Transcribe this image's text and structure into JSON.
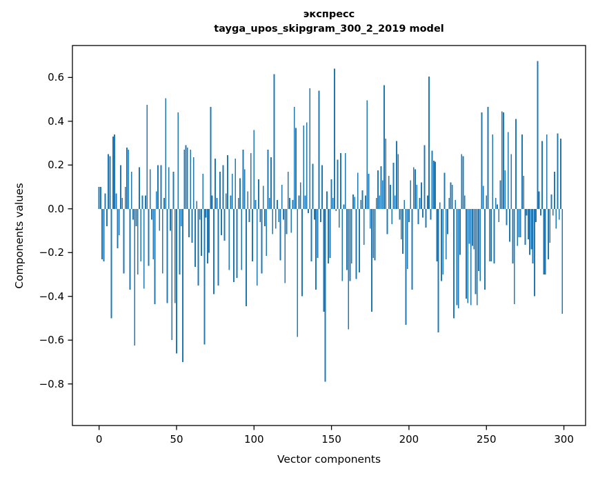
{
  "figure": {
    "title_line1": "экспресс",
    "title_line2": "tayga_upos_skipgram_300_2_2019 model",
    "xlabel": "Vector components",
    "ylabel": "Components values"
  },
  "chart_data": {
    "type": "bar",
    "title": "экспресс",
    "subtitle": "tayga_upos_skipgram_300_2_2019 model",
    "xlabel": "Vector components",
    "ylabel": "Components values",
    "bar_color": "#1f77b4",
    "axis_color": "#000000",
    "n_components": 300,
    "x_ticks": [
      0,
      50,
      100,
      150,
      200,
      250,
      300
    ],
    "x_tick_labels": [
      "0",
      "50",
      "100",
      "150",
      "200",
      "250",
      "300"
    ],
    "y_ticks": [
      0.6,
      0.4,
      0.2,
      0.0,
      -0.2,
      -0.4,
      -0.6,
      -0.8
    ],
    "y_tick_labels": [
      "0.6",
      "0.4",
      "0.2",
      "0.0",
      "−0.2",
      "−0.4",
      "−0.6",
      "−0.8"
    ],
    "xlim": [
      -17.2,
      314
    ],
    "ylim": [
      -0.99,
      0.746
    ],
    "grid": false,
    "legend": false,
    "values": [
      0.1,
      0.1,
      -0.23,
      -0.24,
      0.07,
      -0.08,
      0.25,
      0.24,
      -0.5,
      0.33,
      0.34,
      0.07,
      -0.18,
      -0.12,
      0.2,
      0.05,
      -0.295,
      0.1,
      0.28,
      0.27,
      -0.37,
      0.17,
      -0.05,
      -0.625,
      -0.08,
      -0.3,
      0.19,
      -0.24,
      0.06,
      -0.365,
      0.06,
      0.475,
      -0.26,
      0.18,
      -0.05,
      -0.23,
      -0.435,
      0.08,
      0.2,
      -0.1,
      0.2,
      -0.295,
      0.05,
      0.505,
      -0.43,
      0.19,
      -0.1,
      -0.6,
      0.17,
      -0.43,
      -0.66,
      0.44,
      -0.3,
      -0.08,
      -0.7,
      0.27,
      0.29,
      0.28,
      -0.13,
      0.27,
      -0.155,
      0.235,
      -0.265,
      0.035,
      -0.35,
      -0.05,
      -0.215,
      0.16,
      -0.62,
      -0.04,
      -0.25,
      -0.2,
      0.465,
      0.06,
      -0.39,
      0.23,
      0.05,
      -0.35,
      0.17,
      -0.12,
      0.2,
      -0.145,
      0.07,
      0.245,
      -0.28,
      0.06,
      0.16,
      -0.335,
      0.23,
      -0.315,
      0.05,
      0.14,
      -0.28,
      0.27,
      0.18,
      -0.445,
      0.08,
      -0.06,
      0.255,
      -0.24,
      0.36,
      0.04,
      -0.35,
      0.135,
      -0.06,
      -0.295,
      0.105,
      -0.08,
      -0.215,
      0.27,
      0.05,
      0.235,
      -0.115,
      0.615,
      -0.09,
      0.04,
      -0.06,
      -0.235,
      0.11,
      -0.05,
      -0.34,
      -0.115,
      0.17,
      0.05,
      -0.11,
      0.04,
      0.465,
      0.37,
      -0.585,
      0.06,
      0.12,
      -0.4,
      0.38,
      0.06,
      0.395,
      -0.02,
      0.55,
      -0.24,
      0.205,
      -0.05,
      -0.37,
      -0.225,
      0.54,
      -0.06,
      0.2,
      -0.47,
      -0.79,
      0.08,
      -0.25,
      -0.225,
      0.135,
      0.05,
      0.64,
      -0.01,
      0.225,
      -0.085,
      0.255,
      -0.33,
      0.02,
      0.255,
      -0.28,
      -0.55,
      -0.33,
      -0.25,
      0.065,
      0.055,
      -0.32,
      0.165,
      -0.29,
      0.04,
      0.085,
      -0.165,
      0.06,
      0.495,
      0.16,
      -0.09,
      -0.47,
      -0.225,
      -0.235,
      0.05,
      0.175,
      0.06,
      0.195,
      0.13,
      0.565,
      0.32,
      -0.115,
      0.15,
      0.11,
      -0.07,
      0.21,
      0.06,
      0.31,
      0.25,
      -0.05,
      -0.14,
      -0.205,
      0.04,
      -0.53,
      -0.275,
      -0.06,
      0.13,
      -0.37,
      0.19,
      0.18,
      0.11,
      -0.07,
      0.05,
      0.12,
      -0.04,
      0.29,
      -0.085,
      0.06,
      0.605,
      -0.05,
      0.265,
      0.22,
      0.215,
      -0.24,
      -0.565,
      0.03,
      -0.33,
      -0.3,
      0.165,
      -0.23,
      -0.115,
      0.05,
      0.12,
      0.11,
      -0.5,
      0.04,
      -0.44,
      -0.455,
      -0.21,
      0.25,
      0.24,
      0.06,
      -0.41,
      -0.43,
      -0.16,
      -0.44,
      -0.17,
      -0.185,
      -0.39,
      -0.44,
      -0.285,
      -0.33,
      0.44,
      0.105,
      -0.37,
      0.06,
      0.465,
      -0.24,
      -0.24,
      0.34,
      -0.25,
      0.05,
      0.02,
      -0.06,
      0.13,
      0.445,
      0.44,
      0.175,
      -0.075,
      0.35,
      -0.15,
      0.25,
      -0.25,
      -0.435,
      0.41,
      -0.17,
      -0.13,
      -0.13,
      0.34,
      0.15,
      -0.165,
      -0.03,
      -0.14,
      -0.21,
      -0.185,
      -0.25,
      -0.4,
      -0.06,
      0.675,
      0.08,
      -0.03,
      0.31,
      -0.3,
      -0.3,
      0.34,
      -0.23,
      -0.155,
      0.065,
      -0.03,
      0.17,
      -0.09,
      0.345,
      -0.05,
      0.32,
      -0.48
    ]
  }
}
